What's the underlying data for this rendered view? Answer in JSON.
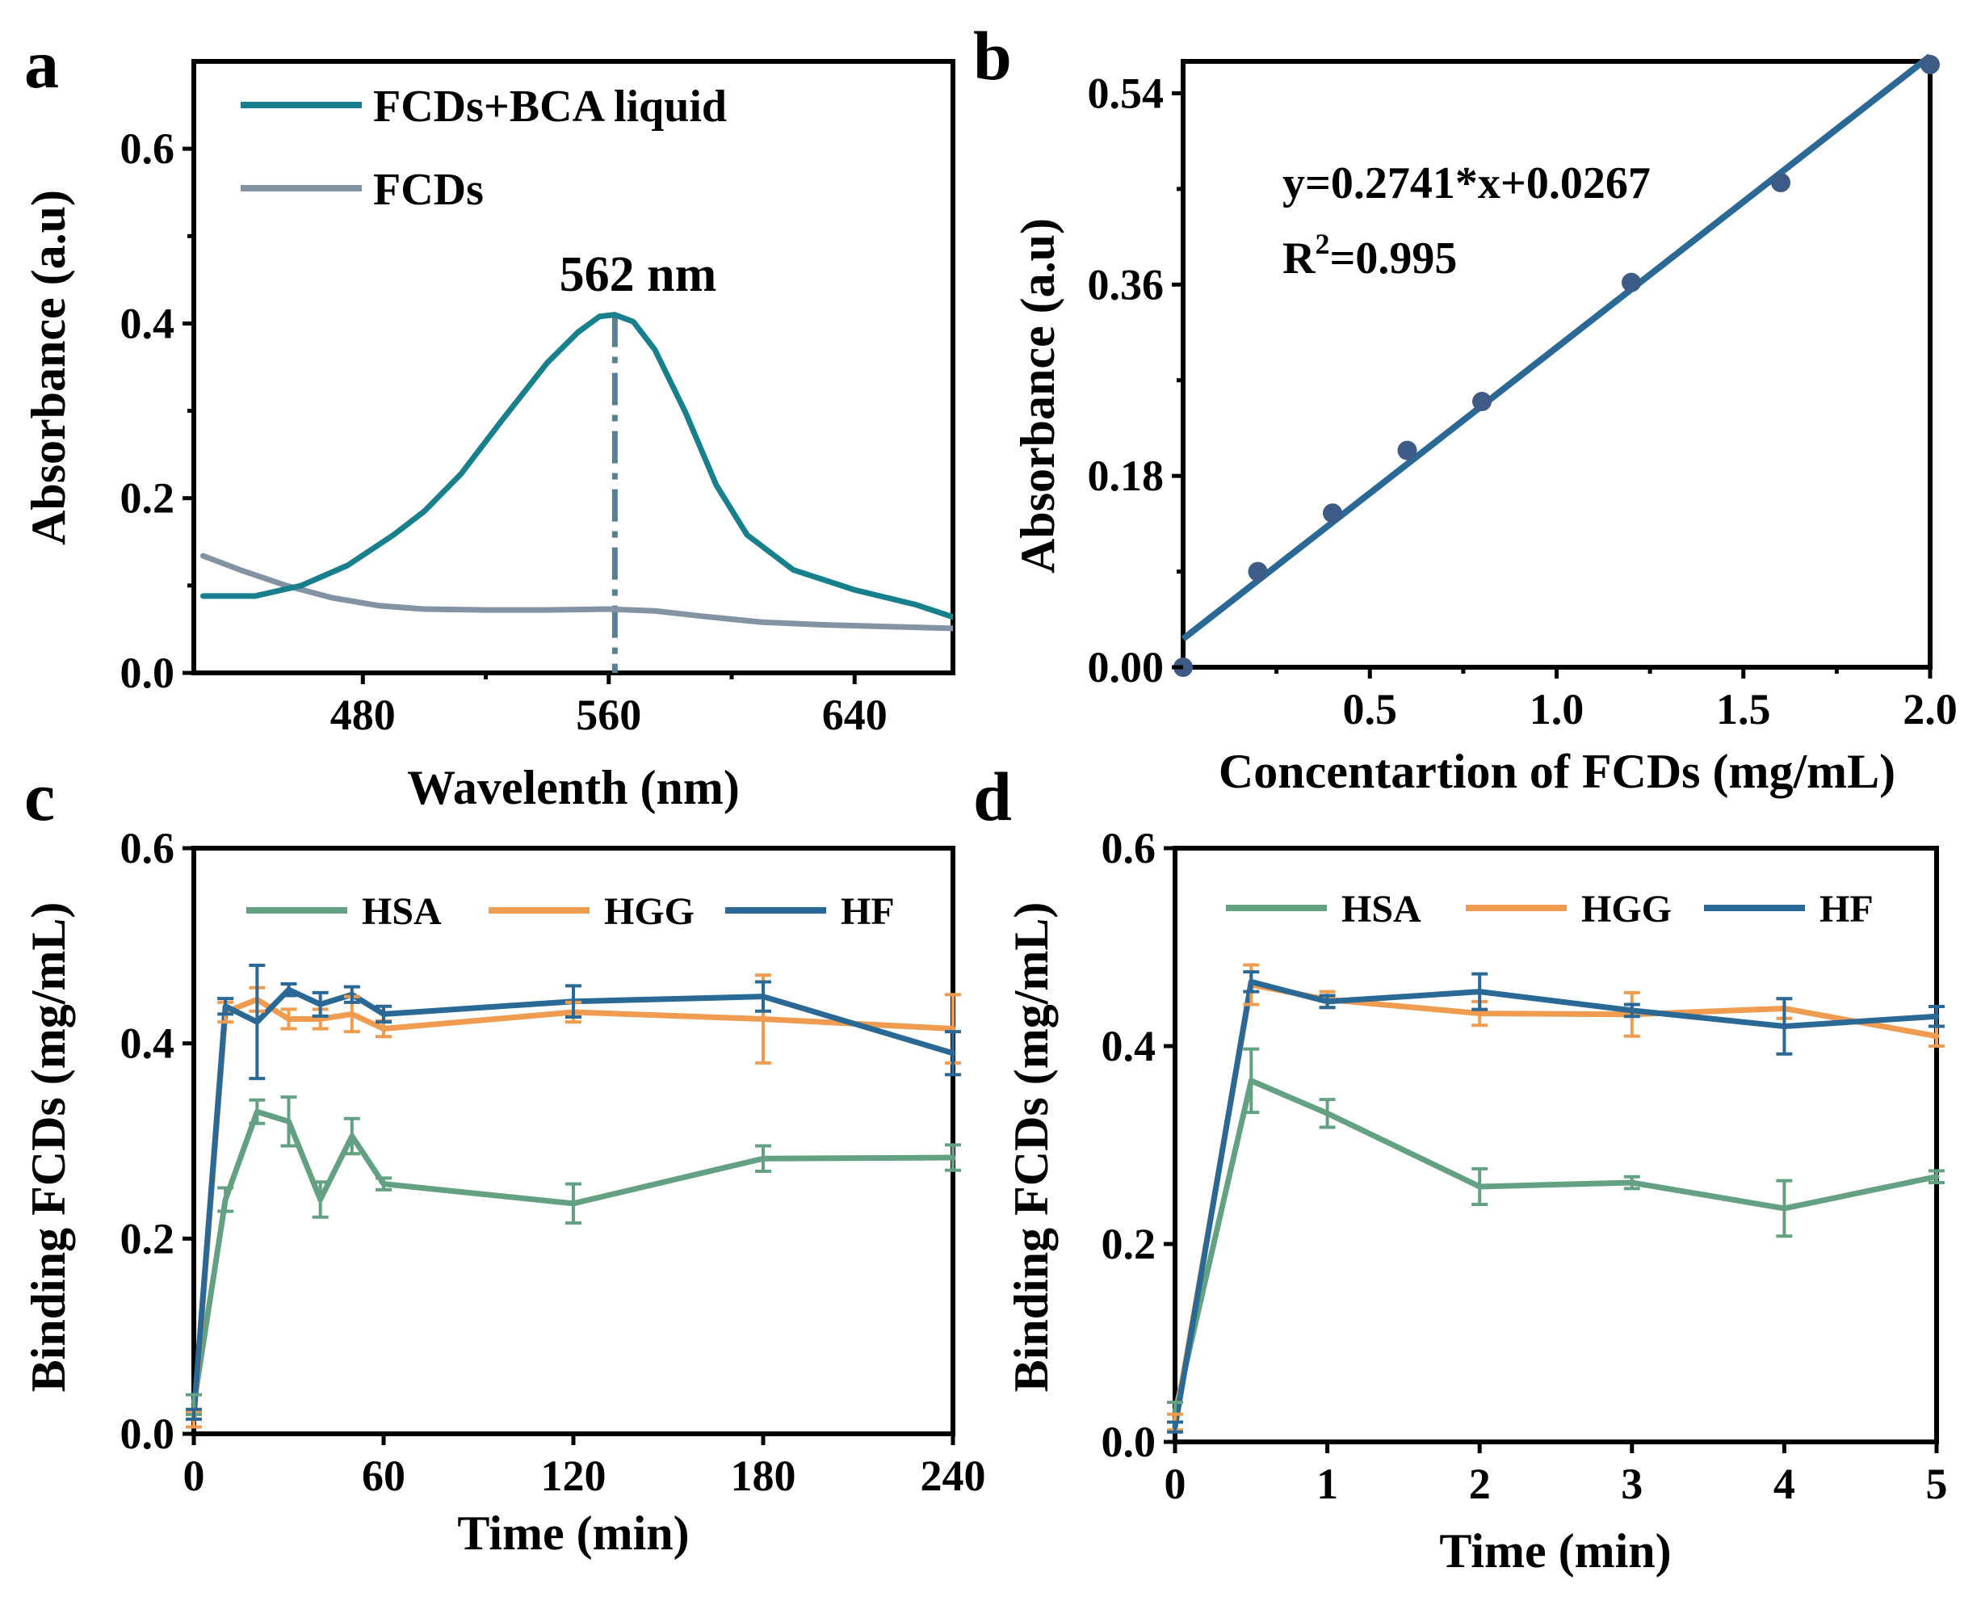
{
  "colors": {
    "teal": "#17808c",
    "gray": "#8393a3",
    "blue": "#2a6895",
    "green": "#64a182",
    "orange": "#f09c50",
    "annotation": "#5b7f91",
    "fit_text": "#2b6a96"
  },
  "chart_data": [
    {
      "panel": "a",
      "type": "line",
      "xlabel": "Wavelenth (nm)",
      "ylabel": "Absorbance (a.u)",
      "xlim": [
        425,
        672
      ],
      "ylim": [
        0,
        0.7
      ],
      "xticks": [
        480,
        560,
        640
      ],
      "xtick_labels": [
        "480",
        "560",
        "640"
      ],
      "yticks": [
        0,
        0.2,
        0.4,
        0.6
      ],
      "ytick_labels": [
        "0.0",
        "0.2",
        "0.4",
        "0.6"
      ],
      "legend_position": "top-left",
      "annotation": {
        "text": "562 nm",
        "x": 562
      },
      "series": [
        {
          "name": "FCDs+BCA liquid",
          "color": "#17808c",
          "x": [
            428,
            445,
            460,
            475,
            490,
            500,
            512,
            525,
            540,
            550,
            557,
            562,
            568,
            575,
            585,
            595,
            605,
            620,
            640,
            660,
            672
          ],
          "y": [
            0.088,
            0.088,
            0.1,
            0.123,
            0.158,
            0.185,
            0.228,
            0.288,
            0.355,
            0.39,
            0.408,
            0.41,
            0.402,
            0.37,
            0.298,
            0.215,
            0.158,
            0.118,
            0.095,
            0.078,
            0.064
          ]
        },
        {
          "name": "FCDs",
          "color": "#8393a3",
          "x": [
            428,
            440,
            455,
            470,
            485,
            500,
            520,
            540,
            560,
            575,
            590,
            610,
            630,
            650,
            672
          ],
          "y": [
            0.134,
            0.118,
            0.1,
            0.086,
            0.077,
            0.073,
            0.072,
            0.072,
            0.073,
            0.071,
            0.065,
            0.058,
            0.055,
            0.053,
            0.051
          ]
        }
      ]
    },
    {
      "panel": "b",
      "type": "scatter",
      "xlabel": "Concentartion of FCDs (mg/mL)",
      "ylabel": "Absorbance (a.u)",
      "xlim": [
        0,
        2.0
      ],
      "ylim": [
        0,
        0.57
      ],
      "xticks": [
        0.5,
        1.0,
        1.5,
        2.0
      ],
      "xtick_labels": [
        "0.5",
        "1.0",
        "1.5",
        "2.0"
      ],
      "yticks": [
        0,
        0.18,
        0.36,
        0.54
      ],
      "ytick_labels": [
        "0.00",
        "0.18",
        "0.36",
        "0.54"
      ],
      "points": {
        "x": [
          0,
          0.2,
          0.4,
          0.6,
          0.8,
          1.2,
          1.6,
          2.0
        ],
        "y": [
          0.0,
          0.09,
          0.145,
          0.204,
          0.25,
          0.362,
          0.456,
          0.567
        ]
      },
      "fit": {
        "slope": 0.2741,
        "intercept": 0.0267
      },
      "equation_text": "y=0.2741*x+0.0267",
      "r2_prefix": "R",
      "r2_sup": "2",
      "r2_value": "=0.995"
    },
    {
      "panel": "c",
      "type": "line",
      "xlabel": "Time (min)",
      "ylabel": "Binding FCDs (mg/mL)",
      "xlim": [
        0,
        240
      ],
      "ylim": [
        0,
        0.6
      ],
      "xticks": [
        0,
        60,
        120,
        180,
        240
      ],
      "xtick_labels": [
        "0",
        "60",
        "120",
        "180",
        "240"
      ],
      "yticks": [
        0,
        0.2,
        0.4,
        0.6
      ],
      "ytick_labels": [
        "0.0",
        "0.2",
        "0.4",
        "0.6"
      ],
      "legend_position": "top",
      "series": [
        {
          "name": "HSA",
          "color": "#64a182",
          "x": [
            0,
            10,
            20,
            30,
            40,
            50,
            60,
            120,
            180,
            240
          ],
          "y": [
            0.03,
            0.24,
            0.33,
            0.32,
            0.24,
            0.305,
            0.256,
            0.236,
            0.282,
            0.283
          ],
          "err": [
            0.01,
            0.012,
            0.012,
            0.025,
            0.018,
            0.018,
            0.006,
            0.02,
            0.013,
            0.013
          ]
        },
        {
          "name": "HGG",
          "color": "#f09c50",
          "x": [
            0,
            10,
            20,
            30,
            40,
            50,
            60,
            120,
            180,
            240
          ],
          "y": [
            0.015,
            0.432,
            0.445,
            0.425,
            0.425,
            0.43,
            0.415,
            0.432,
            0.425,
            0.415
          ],
          "err": [
            0.008,
            0.01,
            0.012,
            0.01,
            0.01,
            0.018,
            0.008,
            0.01,
            0.045,
            0.035
          ]
        },
        {
          "name": "HF",
          "color": "#2a6895",
          "x": [
            0,
            10,
            20,
            30,
            40,
            50,
            60,
            120,
            180,
            240
          ],
          "y": [
            0.02,
            0.438,
            0.422,
            0.455,
            0.44,
            0.45,
            0.43,
            0.443,
            0.448,
            0.39
          ],
          "err": [
            0.005,
            0.008,
            0.058,
            0.006,
            0.012,
            0.008,
            0.008,
            0.016,
            0.015,
            0.022
          ]
        }
      ]
    },
    {
      "panel": "d",
      "type": "line",
      "xlabel": "Time (min)",
      "ylabel": "Binding FCDs (mg/mL)",
      "xlim": [
        0,
        5
      ],
      "ylim": [
        0,
        0.6
      ],
      "xticks": [
        0,
        1,
        2,
        3,
        4,
        5
      ],
      "xtick_labels": [
        "0",
        "1",
        "2",
        "3",
        "4",
        "5"
      ],
      "yticks": [
        0,
        0.2,
        0.4,
        0.6
      ],
      "ytick_labels": [
        "0.0",
        "0.2",
        "0.4",
        "0.6"
      ],
      "legend_position": "top",
      "series": [
        {
          "name": "HSA",
          "color": "#64a182",
          "x": [
            0,
            0.5,
            1,
            2,
            3,
            4,
            5
          ],
          "y": [
            0.03,
            0.365,
            0.332,
            0.258,
            0.262,
            0.236,
            0.268
          ],
          "err": [
            0.01,
            0.032,
            0.014,
            0.018,
            0.006,
            0.028,
            0.006
          ]
        },
        {
          "name": "HGG",
          "color": "#f09c50",
          "x": [
            0,
            0.5,
            1,
            2,
            3,
            4,
            5
          ],
          "y": [
            0.02,
            0.462,
            0.447,
            0.433,
            0.432,
            0.438,
            0.41
          ],
          "err": [
            0.008,
            0.02,
            0.008,
            0.012,
            0.022,
            0.01,
            0.01
          ]
        },
        {
          "name": "HF",
          "color": "#2a6895",
          "x": [
            0,
            0.5,
            1,
            2,
            3,
            4,
            5
          ],
          "y": [
            0.015,
            0.465,
            0.445,
            0.455,
            0.436,
            0.42,
            0.43
          ],
          "err": [
            0.005,
            0.01,
            0.006,
            0.018,
            0.006,
            0.028,
            0.01
          ]
        }
      ]
    }
  ]
}
